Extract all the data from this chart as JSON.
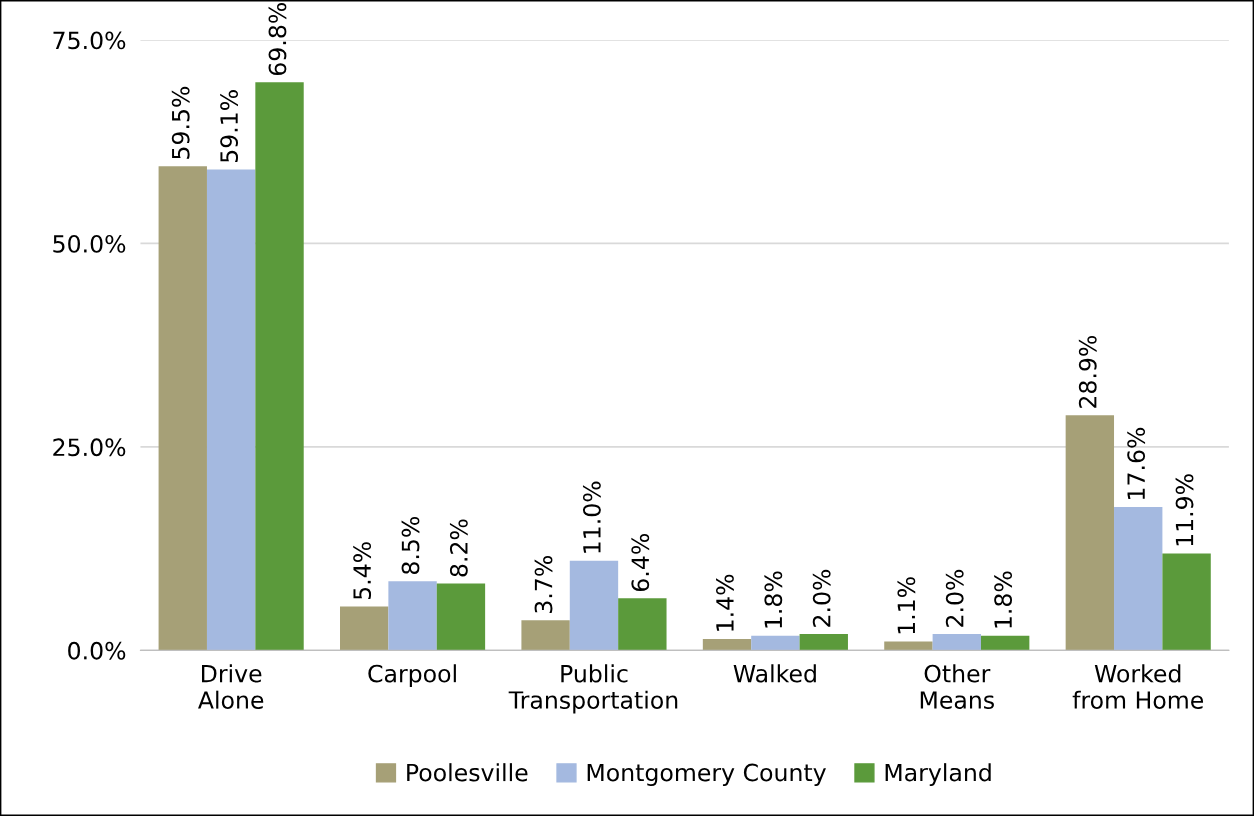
{
  "chart_data": {
    "type": "bar",
    "categories": [
      "Drive\nAlone",
      "Carpool",
      "Public\nTransportation",
      "Walked",
      "Other\nMeans",
      "Worked\nfrom Home"
    ],
    "series": [
      {
        "name": "Poolesville",
        "color": "#a6a077",
        "values": [
          59.5,
          5.4,
          3.7,
          1.4,
          1.1,
          28.9
        ],
        "value_labels": [
          "59.5%",
          "5.4%",
          "3.7%",
          "1.4%",
          "1.1%",
          "28.9%"
        ]
      },
      {
        "name": "Montgomery County",
        "color": "#a4b9e0",
        "values": [
          59.1,
          8.5,
          11.0,
          1.8,
          2.0,
          17.6
        ],
        "value_labels": [
          "59.1%",
          "8.5%",
          "11.0%",
          "1.8%",
          "2.0%",
          "17.6%"
        ]
      },
      {
        "name": "Maryland",
        "color": "#5b9a3b",
        "values": [
          69.8,
          8.2,
          6.4,
          2.0,
          1.8,
          11.9
        ],
        "value_labels": [
          "69.8%",
          "8.2%",
          "6.4%",
          "2.0%",
          "1.8%",
          "11.9%"
        ]
      }
    ],
    "ylim": [
      0,
      75
    ],
    "yticks": [
      {
        "value": 0,
        "label": "0.0%"
      },
      {
        "value": 25,
        "label": "25.0%"
      },
      {
        "value": 50,
        "label": "50.0%"
      },
      {
        "value": 75,
        "label": "75.0%"
      }
    ],
    "grid": "y",
    "legend": "bottom"
  }
}
